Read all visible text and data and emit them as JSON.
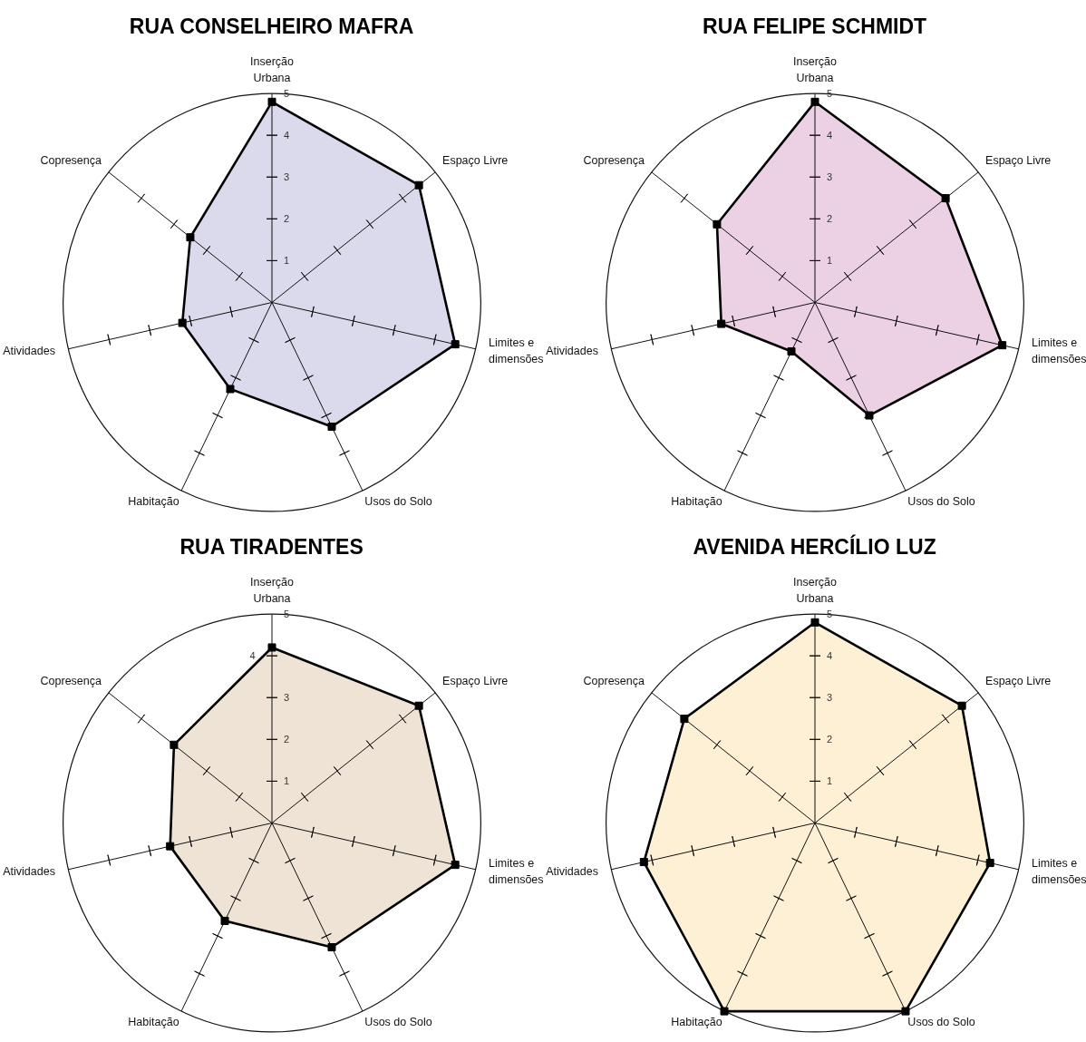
{
  "chart_data": [
    {
      "type": "radar",
      "title": "RUA CONSELHEIRO MAFRA",
      "categories": [
        "Inserção\nUrbana",
        "Espaço Livre",
        "Limites e\ndimensões",
        "Usos do Solo",
        "Habitação",
        "Atividades",
        "Copresença"
      ],
      "series": [
        {
          "color": "#dbd9ec",
          "values": [
            4.8,
            4.5,
            4.5,
            3.3,
            2.3,
            2.2,
            2.5
          ]
        }
      ],
      "ylim": [
        0,
        5
      ],
      "yticks": [
        1,
        2,
        3,
        4,
        5
      ],
      "grid": true,
      "marker": "square"
    },
    {
      "type": "radar",
      "title": "RUA FELIPE SCHMIDT",
      "categories": [
        "Inserção\nUrbana",
        "Espaço Livre",
        "Limites e\ndimensões",
        "Usos do Solo",
        "Habitação",
        "Atividades",
        "Copresença"
      ],
      "series": [
        {
          "color": "#ecd1e5",
          "values": [
            4.8,
            4.0,
            4.6,
            3.0,
            1.3,
            2.3,
            3.0
          ]
        }
      ],
      "ylim": [
        0,
        5
      ],
      "yticks": [
        1,
        2,
        3,
        4,
        5
      ],
      "grid": true,
      "marker": "square"
    },
    {
      "type": "radar",
      "title": "RUA TIRADENTES",
      "categories": [
        "Inserção\nUrbana",
        "Espaço Livre",
        "Limites e\ndimensões",
        "Usos do Solo",
        "Habitação",
        "Atividades",
        "Copresença"
      ],
      "series": [
        {
          "color": "#eee3d4",
          "values": [
            4.2,
            4.5,
            4.5,
            3.3,
            2.6,
            2.5,
            3.0
          ]
        }
      ],
      "ylim": [
        0,
        5
      ],
      "yticks": [
        1,
        2,
        3,
        4,
        5
      ],
      "grid": true,
      "marker": "square"
    },
    {
      "type": "radar",
      "title": "AVENIDA HERCÍLIO LUZ",
      "categories": [
        "Inserção\nUrbana",
        "Espaço Livre",
        "Limites e\ndimensões",
        "Usos do Solo",
        "Habitação",
        "Atividades",
        "Copresença"
      ],
      "series": [
        {
          "color": "#fdf0d4",
          "values": [
            4.8,
            4.5,
            4.3,
            5.0,
            5.0,
            4.2,
            4.0
          ]
        }
      ],
      "ylim": [
        0,
        5
      ],
      "yticks": [
        1,
        2,
        3,
        4,
        5
      ],
      "grid": true,
      "marker": "square"
    }
  ]
}
